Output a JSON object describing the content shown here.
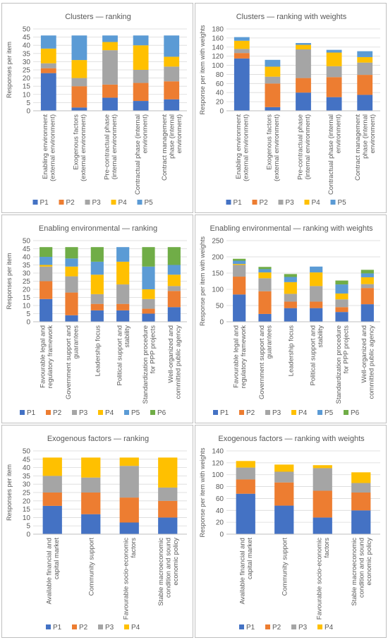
{
  "colors": {
    "P1": "#4472C4",
    "P2": "#ED7D31",
    "P3": "#A5A5A5",
    "P4": "#FFC000",
    "P5": "#5B9BD5",
    "P6": "#70AD47",
    "axis_text": "#595959",
    "grid": "#d9d9d9"
  },
  "chart_data": [
    {
      "type": "bar",
      "stacked": true,
      "title": "Clusters — ranking",
      "ylabel": "Responses per item",
      "ylim": [
        0,
        50
      ],
      "yticks": [
        0,
        5,
        10,
        15,
        20,
        25,
        30,
        35,
        40,
        45,
        50
      ],
      "categories": [
        [
          "Enabling environment",
          "(external environment)"
        ],
        [
          "Exogenous factors",
          "(external environment)"
        ],
        [
          "Pre-contractual phase",
          "(internal environment)"
        ],
        [
          "Contractual phase (internal",
          "environment)"
        ],
        [
          "Contract management",
          "phase (internal",
          "environment)"
        ]
      ],
      "series": [
        {
          "name": "P1",
          "values": [
            23,
            2,
            8,
            6,
            7
          ]
        },
        {
          "name": "P2",
          "values": [
            3,
            13,
            8,
            11,
            11
          ]
        },
        {
          "name": "P3",
          "values": [
            3,
            5,
            21,
            8,
            9
          ]
        },
        {
          "name": "P4",
          "values": [
            9,
            11,
            5,
            15,
            6
          ]
        },
        {
          "name": "P5",
          "values": [
            8,
            15,
            4,
            6,
            13
          ]
        }
      ],
      "legend": "bottom"
    },
    {
      "type": "bar",
      "stacked": true,
      "title": "Clusters — ranking with weights",
      "ylabel": "Response per item with weights",
      "ylim": [
        0,
        180
      ],
      "yticks": [
        0,
        20,
        40,
        60,
        80,
        100,
        120,
        140,
        160,
        180
      ],
      "categories": [
        [
          "Enabling environment",
          "(external environment)"
        ],
        [
          "Exogenous factors",
          "(external environment)"
        ],
        [
          "Pre-contractual phase",
          "(internal environment)"
        ],
        [
          "Contractual phase (internal",
          "environment)"
        ],
        [
          "Contract management",
          "phase (internal",
          "environment)"
        ]
      ],
      "series": [
        {
          "name": "P1",
          "values": [
            115,
            8,
            40,
            30,
            35
          ]
        },
        {
          "name": "P2",
          "values": [
            12,
            52,
            32,
            44,
            44
          ]
        },
        {
          "name": "P3",
          "values": [
            9,
            15,
            63,
            24,
            27
          ]
        },
        {
          "name": "P4",
          "values": [
            18,
            22,
            10,
            30,
            12
          ]
        },
        {
          "name": "P5",
          "values": [
            8,
            15,
            4,
            6,
            13
          ]
        }
      ],
      "legend": "bottom"
    },
    {
      "type": "bar",
      "stacked": true,
      "title": "Enabling environmental — ranking",
      "ylabel": "Responses per item",
      "ylim": [
        0,
        50
      ],
      "yticks": [
        0,
        5,
        10,
        15,
        20,
        25,
        30,
        35,
        40,
        45,
        50
      ],
      "categories": [
        [
          "Favourable legal and",
          "regulatory framework"
        ],
        [
          "Government support and",
          "guarantees"
        ],
        [
          "Leadership focus"
        ],
        [
          "Political support and",
          "stability"
        ],
        [
          "Standardization procedure",
          "for PPP projects"
        ],
        [
          "Well-organized and",
          "committed public agency"
        ]
      ],
      "series": [
        {
          "name": "P1",
          "values": [
            14,
            4,
            7,
            7,
            5,
            9
          ]
        },
        {
          "name": "P2",
          "values": [
            11,
            14,
            4,
            4,
            3,
            10
          ]
        },
        {
          "name": "P3",
          "values": [
            9,
            10,
            6,
            12,
            6,
            3
          ]
        },
        {
          "name": "P4",
          "values": [
            1,
            6,
            12,
            14,
            6,
            7
          ]
        },
        {
          "name": "P5",
          "values": [
            5,
            5,
            8,
            9,
            14,
            6
          ]
        },
        {
          "name": "P6",
          "values": [
            6,
            7,
            9,
            0,
            12,
            11
          ]
        }
      ],
      "legend": "bottom"
    },
    {
      "type": "bar",
      "stacked": true,
      "title": "Enabling environmental — ranking with weights",
      "ylabel": "Response per item with weights",
      "ylim": [
        0,
        250
      ],
      "yticks": [
        0,
        50,
        100,
        150,
        200,
        250
      ],
      "categories": [
        [
          "Favourable legal and",
          "regulatory framework"
        ],
        [
          "Government support and",
          "guarantees"
        ],
        [
          "Leadership focus"
        ],
        [
          "Political support and",
          "stability"
        ],
        [
          "Standardization procedure",
          "for PPP projects"
        ],
        [
          "Well-organized and",
          "committed public agency"
        ]
      ],
      "series": [
        {
          "name": "P1",
          "values": [
            84,
            24,
            42,
            42,
            30,
            54
          ]
        },
        {
          "name": "P2",
          "values": [
            55,
            70,
            20,
            20,
            15,
            50
          ]
        },
        {
          "name": "P3",
          "values": [
            36,
            40,
            24,
            48,
            24,
            12
          ]
        },
        {
          "name": "P4",
          "values": [
            3,
            18,
            36,
            42,
            18,
            21
          ]
        },
        {
          "name": "P5",
          "values": [
            10,
            10,
            16,
            18,
            28,
            12
          ]
        },
        {
          "name": "P6",
          "values": [
            6,
            7,
            9,
            0,
            12,
            11
          ]
        }
      ],
      "legend": "bottom"
    },
    {
      "type": "bar",
      "stacked": true,
      "title": "Exogenous factors — ranking",
      "ylabel": "Responses per item",
      "ylim": [
        0,
        50
      ],
      "yticks": [
        0,
        5,
        10,
        15,
        20,
        25,
        30,
        35,
        40,
        45,
        50
      ],
      "categories": [
        [
          "Available financial and",
          "capital market"
        ],
        [
          "Community support"
        ],
        [
          "Favourable socio-economic",
          "factors"
        ],
        [
          "Stable macroeconomic",
          "condition and sound",
          "economic policy"
        ]
      ],
      "series": [
        {
          "name": "P1",
          "values": [
            17,
            12,
            7,
            10
          ]
        },
        {
          "name": "P2",
          "values": [
            8,
            13,
            15,
            10
          ]
        },
        {
          "name": "P3",
          "values": [
            10,
            9,
            19,
            8
          ]
        },
        {
          "name": "P4",
          "values": [
            11,
            12,
            5,
            18
          ]
        }
      ],
      "legend": "bottom"
    },
    {
      "type": "bar",
      "stacked": true,
      "title": "Exogenous factors — ranking with weights",
      "ylabel": "Response per item with weights",
      "ylim": [
        0,
        140
      ],
      "yticks": [
        0,
        20,
        40,
        60,
        80,
        100,
        120,
        140
      ],
      "categories": [
        [
          "Available financial and",
          "capital market"
        ],
        [
          "Community support"
        ],
        [
          "Favourable socio-economic",
          "factors"
        ],
        [
          "Stable macroeconomic",
          "condition and sound",
          "economic policy"
        ]
      ],
      "series": [
        {
          "name": "P1",
          "values": [
            68,
            48,
            28,
            40
          ]
        },
        {
          "name": "P2",
          "values": [
            24,
            39,
            45,
            30
          ]
        },
        {
          "name": "P3",
          "values": [
            20,
            18,
            38,
            16
          ]
        },
        {
          "name": "P4",
          "values": [
            11,
            12,
            5,
            18
          ]
        }
      ],
      "legend": "bottom"
    }
  ]
}
